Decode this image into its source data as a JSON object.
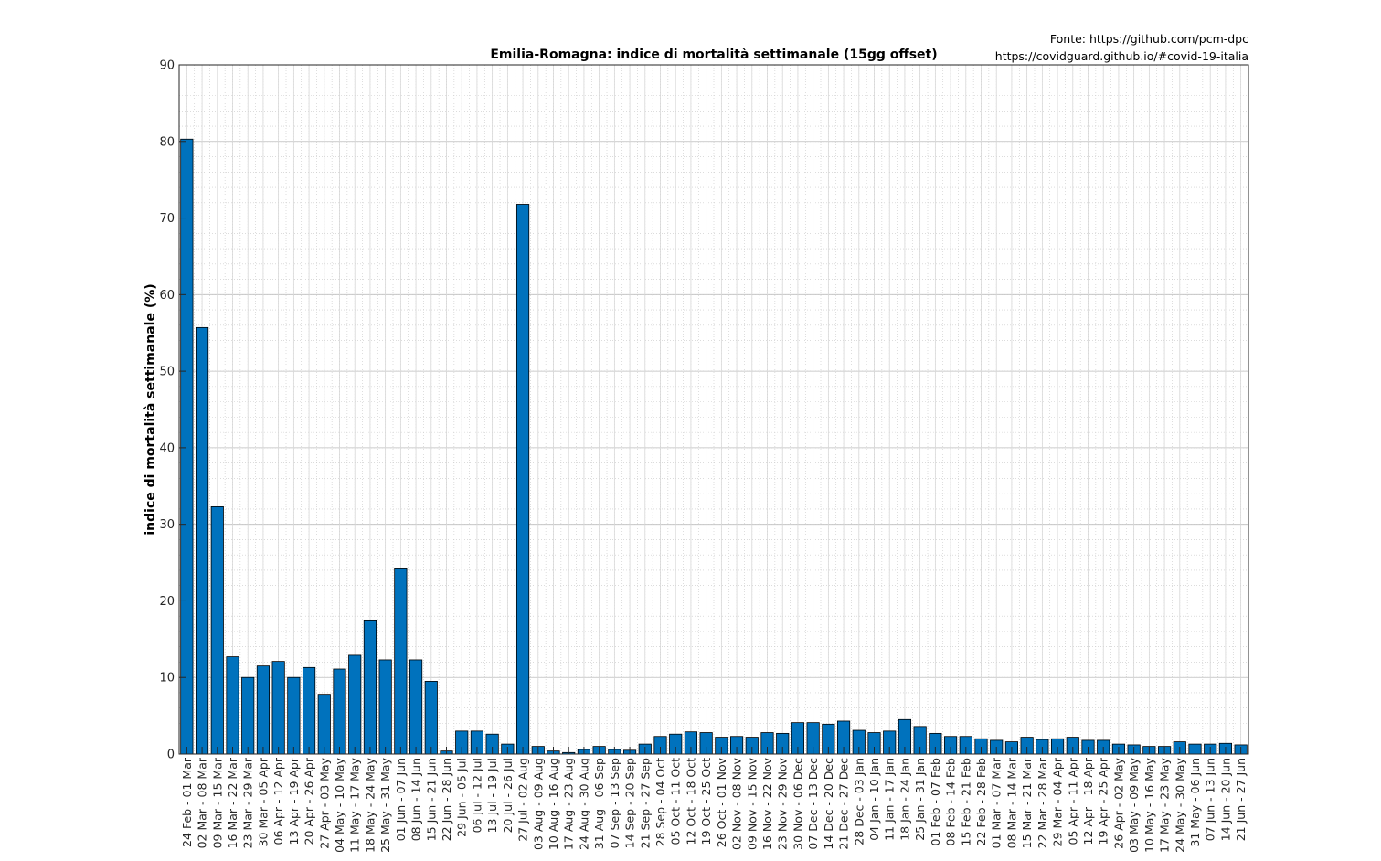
{
  "chart_data": {
    "type": "bar",
    "title": "Emilia-Romagna: indice di mortalità settimanale (15gg offset)",
    "xlabel": "",
    "ylabel": "indice di mortalità settimanale (%)",
    "ylim": [
      0,
      90
    ],
    "yticks": [
      0,
      10,
      20,
      30,
      40,
      50,
      60,
      70,
      80,
      90
    ],
    "grid": true,
    "legend": "none",
    "bar_color": "#0072BD",
    "source_lines": [
      "Fonte: https://github.com/pcm-dpc",
      "https://covidguard.github.io/#covid-19-italia"
    ],
    "categories": [
      "24 Feb - 01 Mar",
      "02 Mar - 08 Mar",
      "09 Mar - 15 Mar",
      "16 Mar - 22 Mar",
      "23 Mar - 29 Mar",
      "30 Mar - 05 Apr",
      "06 Apr - 12 Apr",
      "13 Apr - 19 Apr",
      "20 Apr - 26 Apr",
      "27 Apr - 03 May",
      "04 May - 10 May",
      "11 May - 17 May",
      "18 May - 24 May",
      "25 May - 31 May",
      "01 Jun - 07 Jun",
      "08 Jun - 14 Jun",
      "15 Jun - 21 Jun",
      "22 Jun - 28 Jun",
      "29 Jun - 05 Jul",
      "06 Jul - 12 Jul",
      "13 Jul - 19 Jul",
      "20 Jul - 26 Jul",
      "27 Jul - 02 Aug",
      "03 Aug - 09 Aug",
      "10 Aug - 16 Aug",
      "17 Aug - 23 Aug",
      "24 Aug - 30 Aug",
      "31 Aug - 06 Sep",
      "07 Sep - 13 Sep",
      "14 Sep - 20 Sep",
      "21 Sep - 27 Sep",
      "28 Sep - 04 Oct",
      "05 Oct - 11 Oct",
      "12 Oct - 18 Oct",
      "19 Oct - 25 Oct",
      "26 Oct - 01 Nov",
      "02 Nov - 08 Nov",
      "09 Nov - 15 Nov",
      "16 Nov - 22 Nov",
      "23 Nov - 29 Nov",
      "30 Nov - 06 Dec",
      "07 Dec - 13 Dec",
      "14 Dec - 20 Dec",
      "21 Dec - 27 Dec",
      "28 Dec - 03 Jan",
      "04 Jan - 10 Jan",
      "11 Jan - 17 Jan",
      "18 Jan - 24 Jan",
      "25 Jan - 31 Jan",
      "01 Feb - 07 Feb",
      "08 Feb - 14 Feb",
      "15 Feb - 21 Feb",
      "22 Feb - 28 Feb",
      "01 Mar - 07 Mar",
      "08 Mar - 14 Mar",
      "15 Mar - 21 Mar",
      "22 Mar - 28 Mar",
      "29 Mar - 04 Apr",
      "05 Apr - 11 Apr",
      "12 Apr - 18 Apr",
      "19 Apr - 25 Apr",
      "26 Apr - 02 May",
      "03 May - 09 May",
      "10 May - 16 May",
      "17 May - 23 May",
      "24 May - 30 May",
      "31 May - 06 Jun",
      "07 Jun - 13 Jun",
      "14 Jun - 20 Jun",
      "21 Jun - 27 Jun"
    ],
    "values": [
      80.3,
      55.7,
      32.3,
      12.7,
      10.0,
      11.5,
      12.1,
      10.0,
      11.3,
      7.8,
      11.1,
      12.9,
      17.5,
      12.3,
      24.3,
      12.3,
      9.5,
      0.4,
      3.0,
      3.0,
      2.6,
      1.3,
      71.8,
      1.0,
      0.4,
      0.2,
      0.6,
      1.0,
      0.6,
      0.5,
      1.3,
      2.3,
      2.6,
      2.9,
      2.8,
      2.2,
      2.3,
      2.2,
      2.8,
      2.7,
      4.1,
      4.1,
      3.9,
      4.3,
      3.1,
      2.8,
      3.0,
      4.5,
      3.6,
      2.7,
      2.3,
      2.3,
      2.0,
      1.8,
      1.6,
      2.2,
      1.9,
      2.0,
      2.2,
      1.8,
      1.8,
      1.3,
      1.2,
      1.0,
      1.0,
      1.6,
      1.3,
      1.3,
      1.4,
      1.2
    ]
  }
}
